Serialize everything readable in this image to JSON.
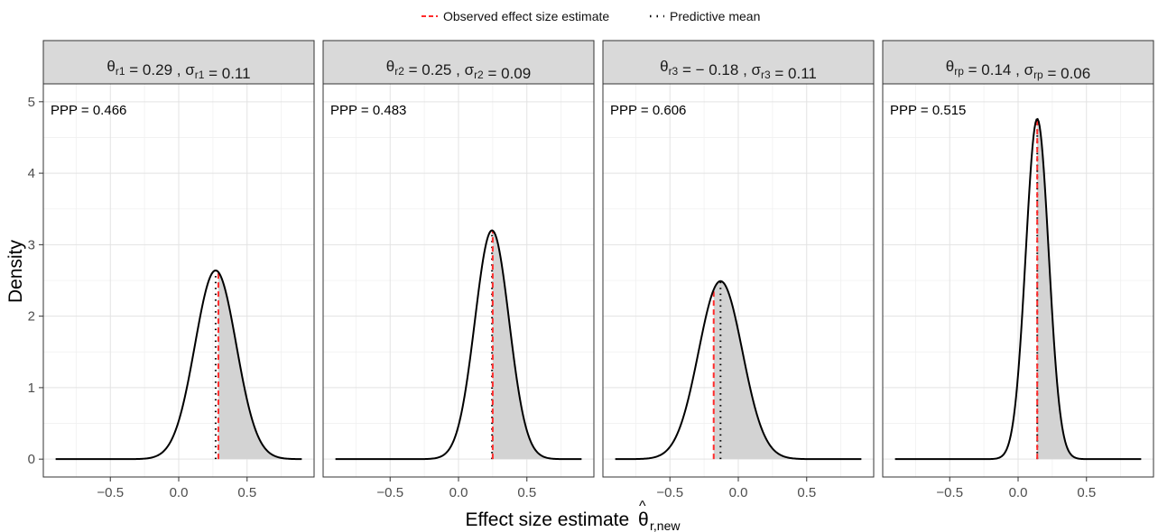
{
  "legend": {
    "items": [
      {
        "label": "Observed effect size estimate",
        "color": "#ff2a2a",
        "style": "dashed"
      },
      {
        "label": "Predictive mean",
        "color": "#000000",
        "style": "dotted"
      }
    ],
    "placement": "top"
  },
  "axes": {
    "ylabel": "Density",
    "xlabel_main": "Effect size estimate ",
    "xlabel_symbol": "θ",
    "xlabel_hat": "^",
    "xlabel_sub": "r,new"
  },
  "chart_data": [
    {
      "type": "area",
      "panel_title": {
        "theta_sub": "r1",
        "theta_val": "= 0.29 ,",
        "sigma_sub": "r1",
        "sigma_val": "= 0.11"
      },
      "annotation": "PPP = 0.466",
      "observed": 0.29,
      "predictive_mean": 0.27,
      "sd": 0.151,
      "peak_density": 2.64,
      "shaded_from": 0.29,
      "curve_xlim": [
        -0.9,
        0.9
      ],
      "xlim": [
        -0.99,
        0.99
      ],
      "ylim": [
        -0.25,
        5.25
      ],
      "xticks": [
        -0.5,
        0.0,
        0.5
      ],
      "xtick_labels": [
        "−0.5",
        "0.0",
        "0.5"
      ],
      "yticks": [
        0,
        1,
        2,
        3,
        4,
        5
      ],
      "ytick_labels": [
        "0",
        "1",
        "2",
        "3",
        "4",
        "5"
      ],
      "grid": true
    },
    {
      "type": "area",
      "panel_title": {
        "theta_sub": "r2",
        "theta_val": "= 0.25 ,",
        "sigma_sub": "r2",
        "sigma_val": "= 0.09"
      },
      "annotation": "PPP = 0.483",
      "observed": 0.25,
      "predictive_mean": 0.245,
      "sd": 0.125,
      "peak_density": 3.2,
      "shaded_from": 0.25,
      "curve_xlim": [
        -0.9,
        0.9
      ],
      "xlim": [
        -0.99,
        0.99
      ],
      "ylim": [
        -0.25,
        5.25
      ],
      "xticks": [
        -0.5,
        0.0,
        0.5
      ],
      "xtick_labels": [
        "−0.5",
        "0.0",
        "0.5"
      ],
      "grid": true
    },
    {
      "type": "area",
      "panel_title": {
        "theta_sub": "r3",
        "theta_val": "= − 0.18 ,",
        "sigma_sub": "r3",
        "sigma_val": "= 0.11"
      },
      "annotation": "PPP = 0.606",
      "observed": -0.18,
      "predictive_mean": -0.13,
      "sd": 0.16,
      "peak_density": 2.49,
      "shaded_from": -0.18,
      "curve_xlim": [
        -0.9,
        0.9
      ],
      "xlim": [
        -0.99,
        0.99
      ],
      "ylim": [
        -0.25,
        5.25
      ],
      "xticks": [
        -0.5,
        0.0,
        0.5
      ],
      "xtick_labels": [
        "−0.5",
        "0.0",
        "0.5"
      ],
      "grid": true
    },
    {
      "type": "area",
      "panel_title": {
        "theta_sub": "rp",
        "theta_val": "= 0.14 ,",
        "sigma_sub": "rp",
        "sigma_val": "= 0.06"
      },
      "annotation": "PPP = 0.515",
      "observed": 0.14,
      "predictive_mean": 0.14,
      "sd": 0.084,
      "peak_density": 4.76,
      "shaded_from": 0.14,
      "curve_xlim": [
        -0.9,
        0.9
      ],
      "xlim": [
        -0.99,
        0.99
      ],
      "ylim": [
        -0.25,
        5.25
      ],
      "xticks": [
        -0.5,
        0.0,
        0.5
      ],
      "xtick_labels": [
        "−0.5",
        "0.0",
        "0.5"
      ],
      "grid": true
    }
  ]
}
